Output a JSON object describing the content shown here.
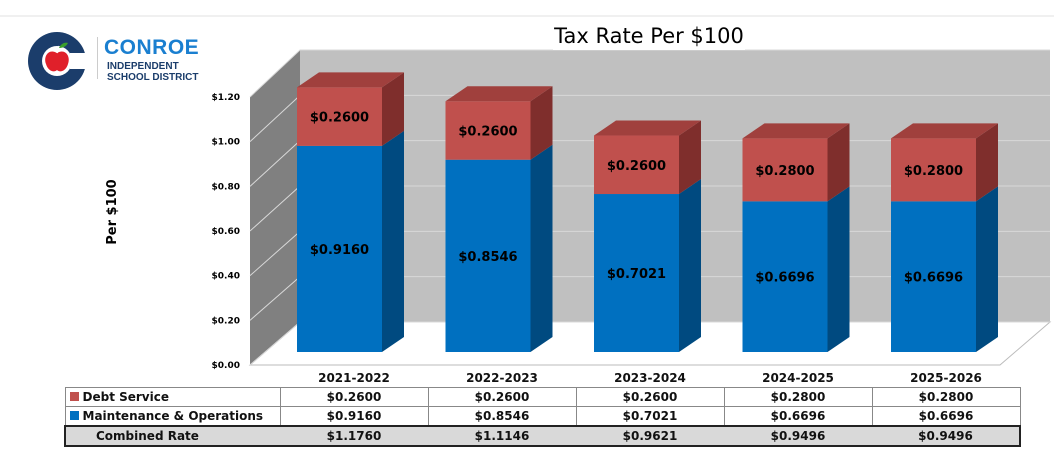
{
  "logo": {
    "name": "CONROE",
    "line1": "INDEPENDENT",
    "line2": "SCHOOL DISTRICT"
  },
  "chart_data": {
    "type": "bar",
    "stacked": true,
    "three_d": true,
    "title": "Tax Rate Per $100",
    "ylabel": "Per $100",
    "xlabel": "",
    "ylim": [
      0,
      1.2
    ],
    "yticks": [
      "$0.00",
      "$0.20",
      "$0.40",
      "$0.60",
      "$0.80",
      "$1.00",
      "$1.20"
    ],
    "ytick_values": [
      0,
      0.2,
      0.4,
      0.6,
      0.8,
      1.0,
      1.2
    ],
    "categories": [
      "2021-2022",
      "2022-2023",
      "2023-2024",
      "2024-2025",
      "2025-2026"
    ],
    "series": [
      {
        "name": "Maintenance & Operations",
        "color": "#0070c0",
        "values": [
          0.916,
          0.8546,
          0.7021,
          0.6696,
          0.6696
        ],
        "labels": [
          "$0.9160",
          "$0.8546",
          "$0.7021",
          "$0.6696",
          "$0.6696"
        ]
      },
      {
        "name": "Debt Service",
        "color": "#c0504d",
        "values": [
          0.26,
          0.26,
          0.26,
          0.28,
          0.28
        ],
        "labels": [
          "$0.2600",
          "$0.2600",
          "$0.2600",
          "$0.2800",
          "$0.2800"
        ]
      }
    ],
    "legend": "data-table"
  },
  "table": {
    "rows": [
      {
        "label": "Debt Service",
        "color": "#c0504d",
        "values": [
          "$0.2600",
          "$0.2600",
          "$0.2600",
          "$0.2800",
          "$0.2800"
        ]
      },
      {
        "label": "Maintenance & Operations",
        "color": "#0070c0",
        "values": [
          "$0.9160",
          "$0.8546",
          "$0.7021",
          "$0.6696",
          "$0.6696"
        ]
      }
    ],
    "combined": {
      "label": "Combined Rate",
      "values": [
        "$1.1760",
        "$1.1146",
        "$0.9621",
        "$0.9496",
        "$0.9496"
      ]
    }
  }
}
